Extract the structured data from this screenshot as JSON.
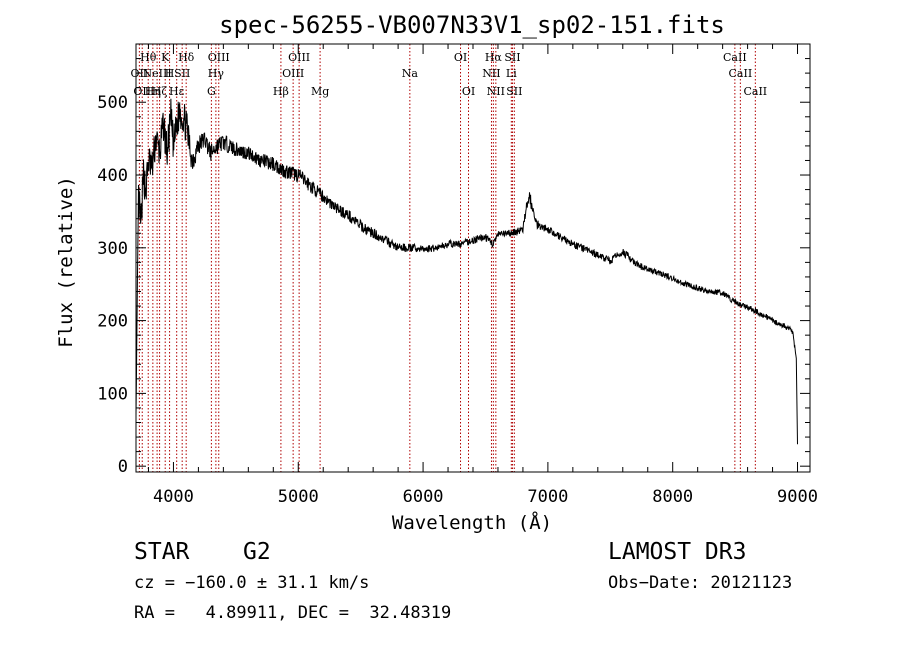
{
  "chart_data": {
    "type": "line",
    "title": "spec-56255-VB007N33V1_sp02-151.fits",
    "xlabel": "Wavelength (Å)",
    "ylabel": "Flux (relative)",
    "xlim": [
      3700,
      9100
    ],
    "ylim": [
      -8,
      580
    ],
    "xticks": [
      4000,
      5000,
      6000,
      7000,
      8000,
      9000
    ],
    "yticks": [
      0,
      100,
      200,
      300,
      400,
      500
    ],
    "xtick_labels": [
      "4000",
      "5000",
      "6000",
      "7000",
      "8000",
      "9000"
    ],
    "ytick_labels": [
      "0",
      "100",
      "200",
      "300",
      "400",
      "500"
    ],
    "series": [
      {
        "name": "flux",
        "x": [
          3700,
          3720,
          3740,
          3760,
          3780,
          3800,
          3830,
          3860,
          3890,
          3920,
          3950,
          3980,
          4000,
          4050,
          4100,
          4150,
          4200,
          4250,
          4300,
          4350,
          4400,
          4450,
          4500,
          4600,
          4700,
          4800,
          4850,
          4900,
          5000,
          5100,
          5200,
          5300,
          5400,
          5500,
          5600,
          5700,
          5800,
          5900,
          6000,
          6100,
          6200,
          6300,
          6400,
          6500,
          6560,
          6600,
          6700,
          6800,
          6820,
          6850,
          6900,
          7000,
          7100,
          7200,
          7300,
          7400,
          7500,
          7600,
          7700,
          7800,
          7900,
          8000,
          8100,
          8200,
          8300,
          8400,
          8500,
          8600,
          8700,
          8800,
          8900,
          8960,
          8990,
          9000
        ],
        "y": [
          70,
          370,
          330,
          400,
          380,
          420,
          410,
          450,
          430,
          470,
          430,
          480,
          440,
          490,
          470,
          420,
          440,
          450,
          430,
          440,
          445,
          440,
          435,
          430,
          420,
          415,
          410,
          405,
          400,
          385,
          370,
          355,
          345,
          330,
          320,
          310,
          300,
          300,
          298,
          300,
          305,
          305,
          310,
          315,
          305,
          318,
          320,
          325,
          345,
          375,
          335,
          325,
          315,
          305,
          298,
          290,
          282,
          295,
          278,
          270,
          265,
          258,
          250,
          245,
          240,
          238,
          225,
          218,
          210,
          200,
          192,
          185,
          150,
          30
        ],
        "noise": [
          0,
          25,
          25,
          25,
          25,
          25,
          25,
          25,
          25,
          25,
          25,
          25,
          25,
          25,
          25,
          18,
          15,
          12,
          12,
          12,
          12,
          10,
          10,
          10,
          10,
          10,
          10,
          10,
          10,
          10,
          8,
          8,
          8,
          8,
          7,
          6,
          6,
          6,
          5,
          5,
          5,
          5,
          5,
          5,
          5,
          5,
          5,
          6,
          8,
          12,
          8,
          5,
          5,
          5,
          5,
          5,
          5,
          5,
          5,
          4,
          4,
          4,
          4,
          4,
          4,
          4,
          4,
          4,
          4,
          4,
          4,
          4,
          4,
          0
        ]
      }
    ],
    "lines": [
      {
        "w": 3727,
        "label": "OII",
        "row": 2
      },
      {
        "w": 3750,
        "label": "OII",
        "row": 3
      },
      {
        "w": 3798,
        "label": "Hθ",
        "row": 1
      },
      {
        "w": 3835,
        "label": "Hη",
        "row": 3
      },
      {
        "w": 3869,
        "label": "NeIII",
        "row": 2
      },
      {
        "w": 3889,
        "label": "Hζ",
        "row": 3
      },
      {
        "w": 3934,
        "label": "K",
        "row": 1
      },
      {
        "w": 3969,
        "label": "H",
        "row": 2
      },
      {
        "w": 4026,
        "label": "Hε",
        "row": 3
      },
      {
        "w": 4070,
        "label": "SII",
        "row": 2
      },
      {
        "w": 4102,
        "label": "Hδ",
        "row": 1
      },
      {
        "w": 4304,
        "label": "G",
        "row": 3
      },
      {
        "w": 4340,
        "label": "Hγ",
        "row": 2
      },
      {
        "w": 4363,
        "label": "OIII",
        "row": 1
      },
      {
        "w": 4861,
        "label": "Hβ",
        "row": 3
      },
      {
        "w": 4959,
        "label": "OIII",
        "row": 2
      },
      {
        "w": 5007,
        "label": "OIII",
        "row": 1
      },
      {
        "w": 5175,
        "label": "Mg",
        "row": 3
      },
      {
        "w": 5894,
        "label": "Na",
        "row": 2
      },
      {
        "w": 6300,
        "label": "OI",
        "row": 1
      },
      {
        "w": 6364,
        "label": "OI",
        "row": 3
      },
      {
        "w": 6548,
        "label": "NII",
        "row": 2
      },
      {
        "w": 6563,
        "label": "Hα",
        "row": 1
      },
      {
        "w": 6583,
        "label": "NII",
        "row": 3
      },
      {
        "w": 6707,
        "label": "Li",
        "row": 2
      },
      {
        "w": 6716,
        "label": "SII",
        "row": 1
      },
      {
        "w": 6731,
        "label": "SII",
        "row": 3
      },
      {
        "w": 8498,
        "label": "CaII",
        "row": 1
      },
      {
        "w": 8542,
        "label": "CaII",
        "row": 2
      },
      {
        "w": 8662,
        "label": "CaII",
        "row": 3
      }
    ]
  },
  "info": {
    "class": "STAR",
    "subclass": "G2",
    "survey": "LAMOST DR3",
    "cz": "cz = −160.0 ± 31.1 km/s",
    "obs_date": "Obs−Date: 20121123",
    "coords": "RA =   4.89911, DEC =  32.48319"
  }
}
